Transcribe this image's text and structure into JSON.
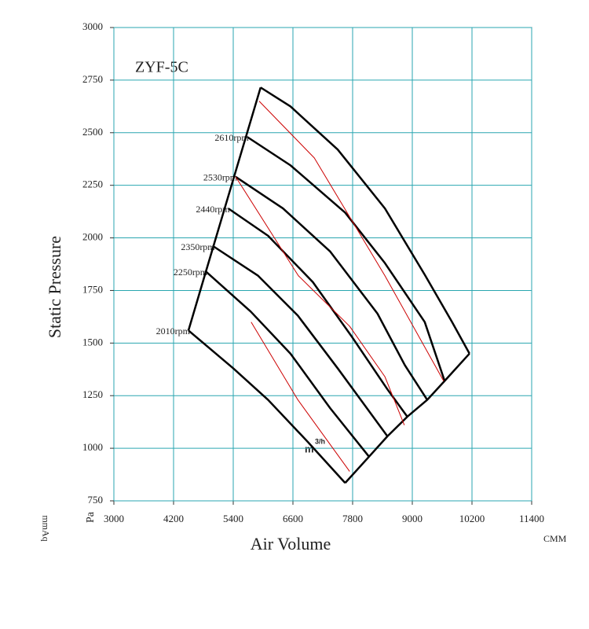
{
  "chart_data": {
    "type": "line",
    "title": "ZYF-5C",
    "x_label": "Air Volume",
    "x_unit": "CMM",
    "y_label": "Static Pressure",
    "y_unit": "Pa",
    "y_unit2": "mmAq",
    "annotation": "m",
    "annotation_sup": "3/h",
    "xlim": [
      3000,
      11400
    ],
    "xticks": [
      3000,
      4200,
      5400,
      6600,
      7800,
      9000,
      10200,
      11400
    ],
    "ylim": [
      750,
      3000
    ],
    "yticks": [
      750,
      1000,
      1250,
      1500,
      1750,
      2000,
      2250,
      2500,
      2750,
      3000
    ],
    "grid": true,
    "series": [
      {
        "color": "#000000",
        "x": [
          5950,
          6550,
          7500,
          8450,
          9250,
          9800,
          10150
        ],
        "values": [
          2715,
          2625,
          2420,
          2140,
          1825,
          1600,
          1450
        ]
      },
      {
        "name": "2610rpm",
        "color": "#000000",
        "x": [
          5680,
          6550,
          7650,
          8450,
          9250,
          9650
        ],
        "values": [
          2480,
          2345,
          2120,
          1880,
          1600,
          1320
        ]
      },
      {
        "name": "2530rpm",
        "color": "#000000",
        "x": [
          5450,
          6400,
          7350,
          8300,
          8850,
          9300
        ],
        "values": [
          2290,
          2140,
          1935,
          1640,
          1395,
          1230
        ]
      },
      {
        "name": "2440rpm",
        "color": "#000000",
        "x": [
          5300,
          6100,
          7000,
          7800,
          8500,
          8900
        ],
        "values": [
          2140,
          2010,
          1790,
          1525,
          1280,
          1150
        ]
      },
      {
        "name": "2350rpm",
        "color": "#000000",
        "x": [
          5000,
          5900,
          6700,
          7500,
          8500
        ],
        "values": [
          1960,
          1820,
          1630,
          1380,
          1057
        ]
      },
      {
        "name": "2250rpm",
        "color": "#000000",
        "x": [
          4850,
          5750,
          6550,
          7350,
          8130
        ],
        "values": [
          1840,
          1650,
          1450,
          1190,
          960
        ]
      },
      {
        "name": "2010rpm",
        "color": "#000000",
        "x": [
          4500,
          5400,
          6100,
          6900,
          7650
        ],
        "values": [
          1560,
          1380,
          1230,
          1030,
          835
        ]
      },
      {
        "color": "#000000",
        "x": [
          5950,
          4850,
          4500
        ],
        "values": [
          2715,
          1840,
          1560
        ]
      },
      {
        "color": "#000000",
        "x": [
          10150,
          9650,
          9300,
          8900,
          8500,
          8130,
          7650
        ],
        "values": [
          1450,
          1320,
          1230,
          1150,
          1057,
          960,
          835
        ]
      },
      {
        "color": "#cc0000",
        "x": [
          5920,
          7030,
          8450,
          9630
        ],
        "values": [
          2650,
          2380,
          1820,
          1320
        ]
      },
      {
        "color": "#cc0000",
        "x": [
          5450,
          6710,
          7740,
          8450,
          8840
        ],
        "values": [
          2290,
          1820,
          1580,
          1340,
          1110
        ]
      },
      {
        "color": "#cc0000",
        "x": [
          5760,
          6700,
          7740
        ],
        "values": [
          1600,
          1230,
          890
        ]
      }
    ]
  }
}
